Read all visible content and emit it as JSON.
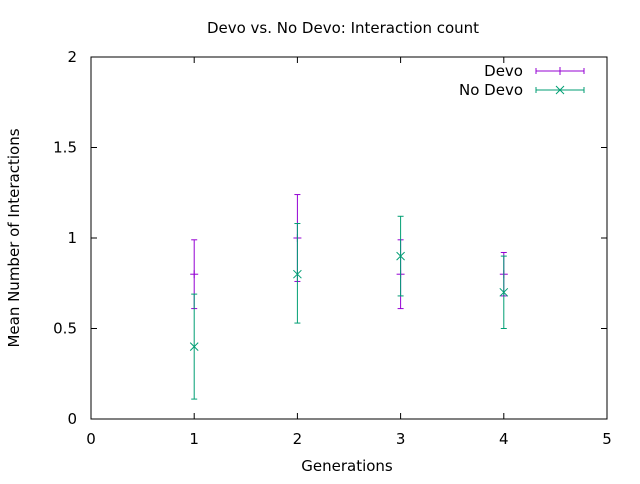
{
  "chart_data": {
    "type": "scatter",
    "title": "Devo vs. No Devo: Interaction count",
    "xlabel": "Generations",
    "ylabel": "Mean Number of Interactions",
    "xlim": [
      0,
      5
    ],
    "ylim": [
      0,
      2
    ],
    "x_ticks": [
      "0",
      "1",
      "2",
      "3",
      "4",
      "5"
    ],
    "y_ticks": [
      "0",
      "0.5",
      "1",
      "1.5",
      "2"
    ],
    "grid": false,
    "legend_position": "top-right",
    "error_bars": true,
    "series": [
      {
        "name": "Devo",
        "color": "#9400d3",
        "marker": "plus",
        "x": [
          1,
          2,
          3,
          4
        ],
        "y": [
          0.8,
          1.0,
          0.8,
          0.8
        ],
        "y_low": [
          0.61,
          0.76,
          0.61,
          0.68
        ],
        "y_high": [
          0.99,
          1.24,
          0.99,
          0.92
        ]
      },
      {
        "name": "No Devo",
        "color": "#009e73",
        "marker": "cross",
        "x": [
          1,
          2,
          3,
          4
        ],
        "y": [
          0.4,
          0.8,
          0.9,
          0.7
        ],
        "y_low": [
          0.11,
          0.53,
          0.68,
          0.5
        ],
        "y_high": [
          0.69,
          1.08,
          1.12,
          0.9
        ]
      }
    ]
  }
}
